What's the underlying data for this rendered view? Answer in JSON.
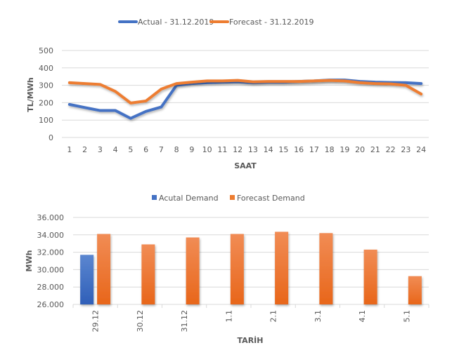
{
  "chart_data": [
    {
      "type": "line",
      "title": "",
      "xlabel": "SAAT",
      "ylabel": "TL/MWh",
      "ylim": [
        0,
        500
      ],
      "yticks": [
        "0",
        "100",
        "200",
        "300",
        "400",
        "500"
      ],
      "grid": true,
      "legend_placement": "top-center",
      "categories": [
        "1",
        "2",
        "3",
        "4",
        "5",
        "6",
        "7",
        "8",
        "9",
        "10",
        "11",
        "12",
        "13",
        "14",
        "15",
        "16",
        "17",
        "18",
        "19",
        "20",
        "21",
        "22",
        "23",
        "24"
      ],
      "series": [
        {
          "name": "Actual - 31.12.2019",
          "color": "#4472C4",
          "values": [
            190,
            172,
            155,
            155,
            110,
            150,
            175,
            300,
            310,
            315,
            318,
            320,
            315,
            318,
            318,
            322,
            325,
            330,
            330,
            322,
            318,
            316,
            315,
            310
          ]
        },
        {
          "name": "Forecast - 31.12.2019",
          "color": "#ED7D31",
          "values": [
            315,
            310,
            305,
            265,
            198,
            210,
            278,
            310,
            318,
            325,
            325,
            328,
            320,
            322,
            322,
            322,
            325,
            328,
            325,
            315,
            310,
            308,
            300,
            250
          ]
        }
      ]
    },
    {
      "type": "bar",
      "title": "",
      "xlabel": "TARİH",
      "ylabel": "MWh",
      "ylim": [
        26000,
        36000
      ],
      "yticks": [
        "26.000",
        "28.000",
        "30.000",
        "32.000",
        "34.000",
        "36.000"
      ],
      "grid": true,
      "legend_placement": "top-center",
      "categories": [
        "29.12",
        "30.12",
        "31.12",
        "1.1",
        "2.1",
        "3.1",
        "4.1",
        "5.1"
      ],
      "series": [
        {
          "name": "Acutal Demand",
          "color": "#4472C4",
          "values": [
            31700,
            null,
            null,
            null,
            null,
            null,
            null,
            null
          ]
        },
        {
          "name": "Forecast Demand",
          "color": "#ED7D31",
          "values": [
            34100,
            32900,
            33700,
            34100,
            34350,
            34200,
            32300,
            29250
          ]
        }
      ]
    }
  ]
}
